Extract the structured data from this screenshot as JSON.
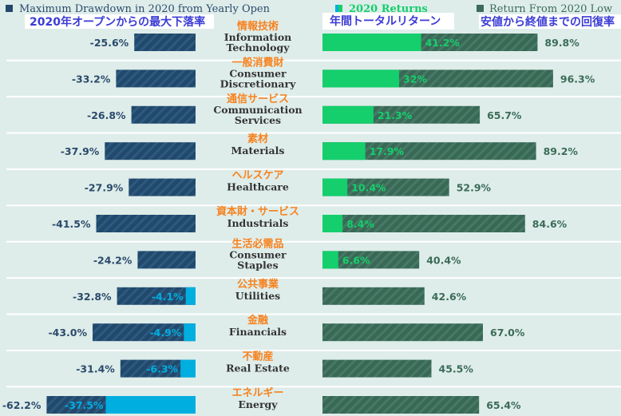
{
  "legend": {
    "drawdown": {
      "label": "Maximum Drawdown in 2020 from Yearly Open",
      "annotation_ja": "2020年オープンからの最大下落率"
    },
    "returns": {
      "label": "2020 Returns",
      "annotation_ja": "年間トータルリターン"
    },
    "from_low": {
      "label": "Return From 2020 Low",
      "annotation_ja": "安値から終値までの回復率"
    }
  },
  "colors": {
    "background": "#deedea",
    "drawdown": "#22486b",
    "negative_return": "#00aee0",
    "positive_return": "#14cf6c",
    "from_low": "#3c6b58",
    "label_ja": "#f7821e",
    "annotation_ja": "#3b3bd6"
  },
  "chart_data": {
    "type": "bar",
    "categories": [
      {
        "en": "Information Technology",
        "ja": "情報技術"
      },
      {
        "en": "Consumer Discretionary",
        "ja": "一般消費財"
      },
      {
        "en": "Communication Services",
        "ja": "通信サービス"
      },
      {
        "en": "Materials",
        "ja": "素材"
      },
      {
        "en": "Healthcare",
        "ja": "ヘルスケア"
      },
      {
        "en": "Industrials",
        "ja": "資本財・サービス"
      },
      {
        "en": "Consumer Staples",
        "ja": "生活必需品"
      },
      {
        "en": "Utilities",
        "ja": "公共事業"
      },
      {
        "en": "Financials",
        "ja": "金融"
      },
      {
        "en": "Real Estate",
        "ja": "不動産"
      },
      {
        "en": "Energy",
        "ja": "エネルギー"
      }
    ],
    "series": [
      {
        "name": "Maximum Drawdown in 2020 from Yearly Open",
        "values": [
          -25.6,
          -33.2,
          -26.8,
          -37.9,
          -27.9,
          -41.5,
          -24.2,
          -32.8,
          -43.0,
          -31.4,
          -62.2
        ]
      },
      {
        "name": "2020 Returns",
        "values": [
          41.2,
          32,
          21.3,
          17.9,
          10.4,
          8.4,
          6.6,
          -4.1,
          -4.9,
          -6.3,
          -37.5
        ]
      },
      {
        "name": "Return From 2020 Low",
        "values": [
          89.8,
          96.3,
          65.7,
          89.2,
          52.9,
          84.6,
          40.4,
          42.6,
          67.0,
          45.5,
          65.4
        ]
      }
    ],
    "value_labels": {
      "drawdown": [
        "-25.6%",
        "-33.2%",
        "-26.8%",
        "-37.9%",
        "-27.9%",
        "-41.5%",
        "-24.2%",
        "-32.8%",
        "-43.0%",
        "-31.4%",
        "-62.2%"
      ],
      "returns": [
        "41.2%",
        "32%",
        "21.3%",
        "17.9%",
        "10.4%",
        "8.4%",
        "6.6%",
        "-4.1%",
        "-4.9%",
        "-6.3%",
        "-37.5%"
      ],
      "from_low": [
        "89.8%",
        "96.3%",
        "65.7%",
        "89.2%",
        "52.9%",
        "84.6%",
        "40.4%",
        "42.6%",
        "67.0%",
        "45.5%",
        "65.4%"
      ]
    },
    "grid": false
  }
}
